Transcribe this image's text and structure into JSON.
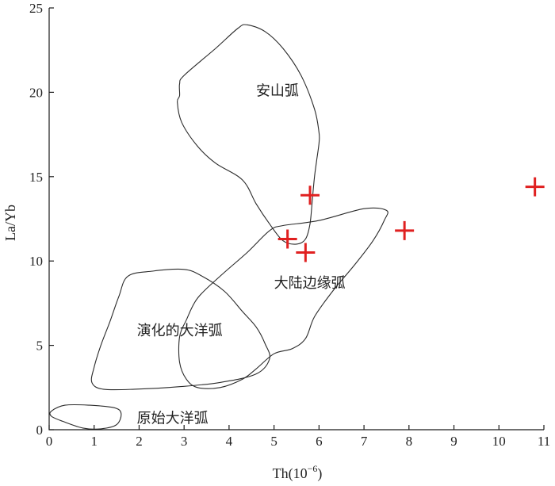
{
  "chart_data": {
    "type": "scatter",
    "xlabel": "Th(10",
    "xlabel_sup": "−6",
    "xlabel_close": ")",
    "ylabel": "La/Yb",
    "xlim": [
      0,
      11
    ],
    "ylim": [
      0,
      25
    ],
    "x_ticks": [
      "0",
      "1",
      "2",
      "3",
      "4",
      "5",
      "6",
      "7",
      "8",
      "9",
      "10",
      "11"
    ],
    "y_ticks": [
      "0",
      "5",
      "10",
      "15",
      "20",
      "25"
    ],
    "grid": false,
    "marker": "plus",
    "marker_color": "#e02020",
    "points": [
      {
        "x": 5.3,
        "y": 11.3
      },
      {
        "x": 5.7,
        "y": 10.5
      },
      {
        "x": 5.8,
        "y": 13.9
      },
      {
        "x": 7.9,
        "y": 11.8
      },
      {
        "x": 10.8,
        "y": 14.4
      }
    ],
    "regions": [
      {
        "label": "安山弧",
        "label_pos": [
          4.6,
          19.8
        ],
        "outline": [
          [
            4.4,
            24.0
          ],
          [
            4.2,
            23.8
          ],
          [
            3.7,
            22.6
          ],
          [
            3.0,
            21.0
          ],
          [
            2.9,
            20.5
          ],
          [
            2.9,
            19.8
          ],
          [
            2.85,
            19.4
          ],
          [
            2.95,
            18.2
          ],
          [
            3.3,
            16.8
          ],
          [
            3.7,
            15.8
          ],
          [
            4.3,
            14.8
          ],
          [
            4.6,
            13.4
          ],
          [
            4.9,
            12.2
          ],
          [
            5.2,
            11.2
          ],
          [
            5.5,
            11.0
          ],
          [
            5.7,
            11.3
          ],
          [
            5.8,
            12.2
          ],
          [
            5.85,
            13.6
          ],
          [
            5.9,
            15.0
          ],
          [
            5.95,
            16.0
          ],
          [
            6.0,
            17.0
          ],
          [
            6.0,
            17.6
          ],
          [
            5.9,
            19.0
          ],
          [
            5.6,
            21.0
          ],
          [
            5.2,
            22.6
          ],
          [
            4.8,
            23.6
          ]
        ]
      },
      {
        "label": "大陆边缘弧",
        "label_pos": [
          5.0,
          8.4
        ],
        "outline": [
          [
            4.9,
            11.8
          ],
          [
            5.2,
            12.1
          ],
          [
            6.0,
            12.4
          ],
          [
            7.0,
            13.1
          ],
          [
            7.5,
            13.0
          ],
          [
            7.45,
            12.4
          ],
          [
            7.2,
            11.2
          ],
          [
            6.8,
            9.8
          ],
          [
            6.3,
            8.2
          ],
          [
            5.9,
            6.7
          ],
          [
            5.7,
            5.4
          ],
          [
            5.4,
            4.8
          ],
          [
            5.0,
            4.5
          ],
          [
            4.6,
            3.6
          ],
          [
            4.3,
            3.0
          ],
          [
            3.8,
            2.5
          ],
          [
            3.3,
            2.5
          ],
          [
            3.05,
            3.0
          ],
          [
            2.9,
            4.0
          ],
          [
            2.9,
            5.5
          ],
          [
            3.05,
            6.5
          ],
          [
            3.3,
            7.8
          ],
          [
            3.8,
            9.1
          ],
          [
            4.4,
            10.5
          ]
        ]
      },
      {
        "label": "演化的大洋弧",
        "label_pos": [
          1.95,
          5.6
        ],
        "outline": [
          [
            1.75,
            9.1
          ],
          [
            2.3,
            9.4
          ],
          [
            3.0,
            9.5
          ],
          [
            3.4,
            9.1
          ],
          [
            3.9,
            8.2
          ],
          [
            4.3,
            7.0
          ],
          [
            4.6,
            6.1
          ],
          [
            4.8,
            5.1
          ],
          [
            4.9,
            4.2
          ],
          [
            4.6,
            3.3
          ],
          [
            3.8,
            2.8
          ],
          [
            2.9,
            2.55
          ],
          [
            1.9,
            2.4
          ],
          [
            1.2,
            2.4
          ],
          [
            0.95,
            2.8
          ],
          [
            1.0,
            3.7
          ],
          [
            1.15,
            5.0
          ],
          [
            1.35,
            6.4
          ],
          [
            1.55,
            7.9
          ]
        ]
      },
      {
        "label": "原始大洋弧",
        "label_pos": [
          1.95,
          0.4
        ],
        "outline": [
          [
            0.05,
            1.1
          ],
          [
            0.35,
            1.45
          ],
          [
            0.9,
            1.45
          ],
          [
            1.45,
            1.3
          ],
          [
            1.6,
            0.95
          ],
          [
            1.5,
            0.3
          ],
          [
            1.15,
            0.05
          ],
          [
            0.75,
            0.1
          ],
          [
            0.3,
            0.5
          ],
          [
            0.05,
            0.8
          ]
        ]
      }
    ]
  }
}
